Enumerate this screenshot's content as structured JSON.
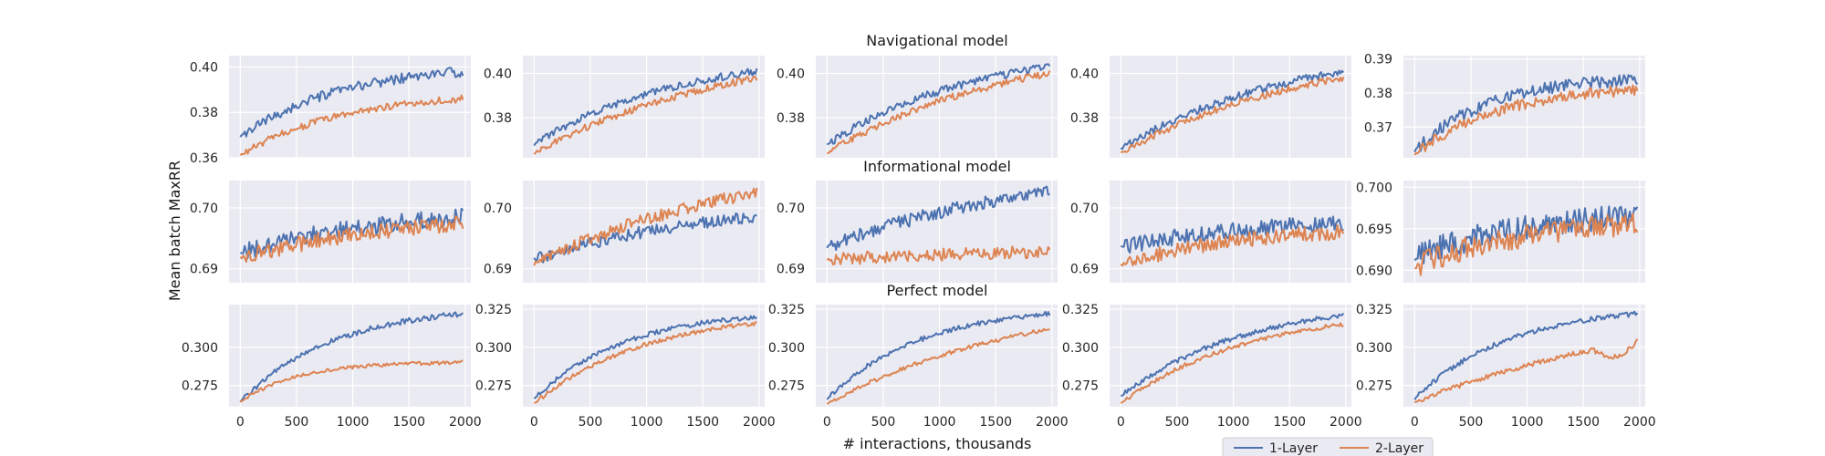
{
  "figure": {
    "xlabel": "# interactions, thousands",
    "ylabel": "Mean batch MaxRR",
    "background": "#eaeaf2",
    "grid": true
  },
  "series_style": [
    {
      "name": "1-Layer",
      "color": "#4c72b0"
    },
    {
      "name": "2-Layer",
      "color": "#dd8452"
    }
  ],
  "legend": {
    "position": "bottom-right",
    "entries": [
      "1-Layer",
      "2-Layer"
    ]
  },
  "rows": [
    {
      "title": "Navigational model"
    },
    {
      "title": "Informational model"
    },
    {
      "title": "Perfect model"
    }
  ],
  "chart_data": [
    {
      "type": "line",
      "row": 0,
      "col": 0,
      "xlim": [
        -100,
        2050
      ],
      "ylim": [
        0.36,
        0.405
      ],
      "xticks": [
        0,
        500,
        1000,
        1500,
        2000
      ],
      "yticks": [
        0.36,
        0.38,
        0.4
      ],
      "ytick_labels": [
        "0.36",
        "0.38",
        "0.40"
      ],
      "show_xticks": false,
      "series": [
        {
          "name": "1-Layer",
          "color": "#4c72b0",
          "start": 0.369,
          "end": 0.398,
          "curve": 2.2,
          "noise": 0.0022,
          "dip": 0
        },
        {
          "name": "2-Layer",
          "color": "#dd8452",
          "start": 0.361,
          "end": 0.386,
          "curve": 2.2,
          "noise": 0.0016,
          "dip": 0
        }
      ]
    },
    {
      "type": "line",
      "row": 0,
      "col": 1,
      "xlim": [
        -100,
        2050
      ],
      "ylim": [
        0.362,
        0.408
      ],
      "xticks": [
        0,
        500,
        1000,
        1500,
        2000
      ],
      "yticks": [
        0.38,
        0.4
      ],
      "ytick_labels": [
        "0.38",
        "0.40"
      ],
      "show_xticks": false,
      "series": [
        {
          "name": "1-Layer",
          "color": "#4c72b0",
          "start": 0.368,
          "end": 0.401,
          "curve": 1.5,
          "noise": 0.0018,
          "dip": 0
        },
        {
          "name": "2-Layer",
          "color": "#dd8452",
          "start": 0.364,
          "end": 0.398,
          "curve": 1.1,
          "noise": 0.0016,
          "dip": 0
        }
      ]
    },
    {
      "type": "line",
      "row": 0,
      "col": 2,
      "xlim": [
        -100,
        2050
      ],
      "ylim": [
        0.362,
        0.408
      ],
      "xticks": [
        0,
        500,
        1000,
        1500,
        2000
      ],
      "yticks": [
        0.38,
        0.4
      ],
      "ytick_labels": [
        "0.38",
        "0.40"
      ],
      "show_xticks": false,
      "series": [
        {
          "name": "1-Layer",
          "color": "#4c72b0",
          "start": 0.368,
          "end": 0.403,
          "curve": 1.5,
          "noise": 0.0018,
          "dip": 0
        },
        {
          "name": "2-Layer",
          "color": "#dd8452",
          "start": 0.364,
          "end": 0.4,
          "curve": 1.2,
          "noise": 0.0016,
          "dip": 0
        }
      ]
    },
    {
      "type": "line",
      "row": 0,
      "col": 3,
      "xlim": [
        -100,
        2050
      ],
      "ylim": [
        0.362,
        0.408
      ],
      "xticks": [
        0,
        500,
        1000,
        1500,
        2000
      ],
      "yticks": [
        0.38,
        0.4
      ],
      "ytick_labels": [
        "0.38",
        "0.40"
      ],
      "show_xticks": false,
      "series": [
        {
          "name": "1-Layer",
          "color": "#4c72b0",
          "start": 0.366,
          "end": 0.401,
          "curve": 1.3,
          "noise": 0.0018,
          "dip": 0
        },
        {
          "name": "2-Layer",
          "color": "#dd8452",
          "start": 0.364,
          "end": 0.398,
          "curve": 1.2,
          "noise": 0.0016,
          "dip": 0
        }
      ]
    },
    {
      "type": "line",
      "row": 0,
      "col": 4,
      "xlim": [
        -100,
        2050
      ],
      "ylim": [
        0.361,
        0.391
      ],
      "xticks": [
        0,
        500,
        1000,
        1500,
        2000
      ],
      "yticks": [
        0.37,
        0.38,
        0.39
      ],
      "ytick_labels": [
        "0.37",
        "0.38",
        "0.39"
      ],
      "show_xticks": false,
      "series": [
        {
          "name": "1-Layer",
          "color": "#4c72b0",
          "start": 0.363,
          "end": 0.384,
          "curve": 3.0,
          "noise": 0.0018,
          "dip": 0
        },
        {
          "name": "2-Layer",
          "color": "#dd8452",
          "start": 0.362,
          "end": 0.381,
          "curve": 2.6,
          "noise": 0.0016,
          "dip": 0
        }
      ]
    },
    {
      "type": "line",
      "row": 1,
      "col": 0,
      "xlim": [
        -100,
        2050
      ],
      "ylim": [
        0.6877,
        0.7045
      ],
      "xticks": [
        0,
        500,
        1000,
        1500,
        2000
      ],
      "yticks": [
        0.69,
        0.7
      ],
      "ytick_labels": [
        "0.69",
        "0.70"
      ],
      "show_xticks": false,
      "series": [
        {
          "name": "1-Layer",
          "color": "#4c72b0",
          "start": 0.6925,
          "end": 0.6985,
          "curve": 1.5,
          "noise": 0.0015,
          "dip": 0
        },
        {
          "name": "2-Layer",
          "color": "#dd8452",
          "start": 0.6918,
          "end": 0.6975,
          "curve": 1.3,
          "noise": 0.0013,
          "dip": 0
        }
      ]
    },
    {
      "type": "line",
      "row": 1,
      "col": 1,
      "xlim": [
        -100,
        2050
      ],
      "ylim": [
        0.6877,
        0.7045
      ],
      "xticks": [
        0,
        500,
        1000,
        1500,
        2000
      ],
      "yticks": [
        0.69,
        0.7
      ],
      "ytick_labels": [
        "0.69",
        "0.70"
      ],
      "show_xticks": false,
      "series": [
        {
          "name": "1-Layer",
          "color": "#4c72b0",
          "start": 0.6915,
          "end": 0.6985,
          "curve": 1.3,
          "noise": 0.001,
          "dip": 0
        },
        {
          "name": "2-Layer",
          "color": "#dd8452",
          "start": 0.6908,
          "end": 0.7025,
          "curve": 1.0,
          "noise": 0.001,
          "dip": 0
        }
      ]
    },
    {
      "type": "line",
      "row": 1,
      "col": 2,
      "xlim": [
        -100,
        2050
      ],
      "ylim": [
        0.6877,
        0.7045
      ],
      "xticks": [
        0,
        500,
        1000,
        1500,
        2000
      ],
      "yticks": [
        0.69,
        0.7
      ],
      "ytick_labels": [
        "0.69",
        "0.70"
      ],
      "show_xticks": false,
      "series": [
        {
          "name": "1-Layer",
          "color": "#4c72b0",
          "start": 0.6935,
          "end": 0.7025,
          "curve": 1.1,
          "noise": 0.0011,
          "dip": 0
        },
        {
          "name": "2-Layer",
          "color": "#dd8452",
          "start": 0.6915,
          "end": 0.6928,
          "curve": 1.0,
          "noise": 0.001,
          "dip": 0
        }
      ]
    },
    {
      "type": "line",
      "row": 1,
      "col": 3,
      "xlim": [
        -100,
        2050
      ],
      "ylim": [
        0.6877,
        0.7045
      ],
      "xticks": [
        0,
        500,
        1000,
        1500,
        2000
      ],
      "yticks": [
        0.69,
        0.7
      ],
      "ytick_labels": [
        "0.69",
        "0.70"
      ],
      "show_xticks": false,
      "series": [
        {
          "name": "1-Layer",
          "color": "#4c72b0",
          "start": 0.6935,
          "end": 0.6975,
          "curve": 1.5,
          "noise": 0.0014,
          "dip": 0
        },
        {
          "name": "2-Layer",
          "color": "#dd8452",
          "start": 0.6905,
          "end": 0.696,
          "curve": 2.0,
          "noise": 0.0012,
          "dip": 0
        }
      ]
    },
    {
      "type": "line",
      "row": 1,
      "col": 4,
      "xlim": [
        -100,
        2050
      ],
      "ylim": [
        0.6885,
        0.7008
      ],
      "xticks": [
        0,
        500,
        1000,
        1500,
        2000
      ],
      "yticks": [
        0.69,
        0.695,
        0.7
      ],
      "ytick_labels": [
        "0.690",
        "0.695",
        "0.700"
      ],
      "show_xticks": false,
      "series": [
        {
          "name": "1-Layer",
          "color": "#4c72b0",
          "start": 0.6915,
          "end": 0.6965,
          "curve": 2.0,
          "noise": 0.0015,
          "dip": 0
        },
        {
          "name": "2-Layer",
          "color": "#dd8452",
          "start": 0.6905,
          "end": 0.6955,
          "curve": 2.0,
          "noise": 0.0014,
          "dip": 0
        }
      ]
    },
    {
      "type": "line",
      "row": 2,
      "col": 0,
      "xlim": [
        -100,
        2050
      ],
      "ylim": [
        0.261,
        0.328
      ],
      "xticks": [
        0,
        500,
        1000,
        1500,
        2000
      ],
      "yticks": [
        0.275,
        0.3
      ],
      "ytick_labels": [
        "0.275",
        "0.300"
      ],
      "show_xticks": true,
      "series": [
        {
          "name": "1-Layer",
          "color": "#4c72b0",
          "start": 0.264,
          "end": 0.322,
          "curve": 2.4,
          "noise": 0.0018,
          "dip": 0
        },
        {
          "name": "2-Layer",
          "color": "#dd8452",
          "start": 0.264,
          "end": 0.29,
          "curve": 4.0,
          "noise": 0.0012,
          "dip": 0
        }
      ]
    },
    {
      "type": "line",
      "row": 2,
      "col": 1,
      "xlim": [
        -100,
        2050
      ],
      "ylim": [
        0.261,
        0.328
      ],
      "xticks": [
        0,
        500,
        1000,
        1500,
        2000
      ],
      "yticks": [
        0.275,
        0.3,
        0.325
      ],
      "ytick_labels": [
        "0.275",
        "0.300",
        "0.325"
      ],
      "show_xticks": true,
      "series": [
        {
          "name": "1-Layer",
          "color": "#4c72b0",
          "start": 0.266,
          "end": 0.32,
          "curve": 2.5,
          "noise": 0.0016,
          "dip": 0
        },
        {
          "name": "2-Layer",
          "color": "#dd8452",
          "start": 0.263,
          "end": 0.316,
          "curve": 2.0,
          "noise": 0.0014,
          "dip": 0
        }
      ]
    },
    {
      "type": "line",
      "row": 2,
      "col": 2,
      "xlim": [
        -100,
        2050
      ],
      "ylim": [
        0.261,
        0.328
      ],
      "xticks": [
        0,
        500,
        1000,
        1500,
        2000
      ],
      "yticks": [
        0.275,
        0.3,
        0.325
      ],
      "ytick_labels": [
        "0.275",
        "0.300",
        "0.325"
      ],
      "show_xticks": true,
      "series": [
        {
          "name": "1-Layer",
          "color": "#4c72b0",
          "start": 0.266,
          "end": 0.322,
          "curve": 2.4,
          "noise": 0.0016,
          "dip": 0
        },
        {
          "name": "2-Layer",
          "color": "#dd8452",
          "start": 0.263,
          "end": 0.312,
          "curve": 1.1,
          "noise": 0.0013,
          "dip": 0
        }
      ]
    },
    {
      "type": "line",
      "row": 2,
      "col": 3,
      "xlim": [
        -100,
        2050
      ],
      "ylim": [
        0.261,
        0.328
      ],
      "xticks": [
        0,
        500,
        1000,
        1500,
        2000
      ],
      "yticks": [
        0.275,
        0.3,
        0.325
      ],
      "ytick_labels": [
        "0.275",
        "0.300",
        "0.325"
      ],
      "show_xticks": true,
      "series": [
        {
          "name": "1-Layer",
          "color": "#4c72b0",
          "start": 0.268,
          "end": 0.321,
          "curve": 1.8,
          "noise": 0.0016,
          "dip": 0
        },
        {
          "name": "2-Layer",
          "color": "#dd8452",
          "start": 0.263,
          "end": 0.315,
          "curve": 1.8,
          "noise": 0.0014,
          "dip": 0
        }
      ]
    },
    {
      "type": "line",
      "row": 2,
      "col": 4,
      "xlim": [
        -100,
        2050
      ],
      "ylim": [
        0.261,
        0.328
      ],
      "xticks": [
        0,
        500,
        1000,
        1500,
        2000
      ],
      "yticks": [
        0.275,
        0.3,
        0.325
      ],
      "ytick_labels": [
        "0.275",
        "0.300",
        "0.325"
      ],
      "show_xticks": true,
      "series": [
        {
          "name": "1-Layer",
          "color": "#4c72b0",
          "start": 0.266,
          "end": 0.322,
          "curve": 2.4,
          "noise": 0.0016,
          "dip": 0
        },
        {
          "name": "2-Layer",
          "color": "#dd8452",
          "start": 0.264,
          "end": 0.304,
          "curve": 0.8,
          "noise": 0.0016,
          "dip": 0.012
        }
      ]
    }
  ]
}
